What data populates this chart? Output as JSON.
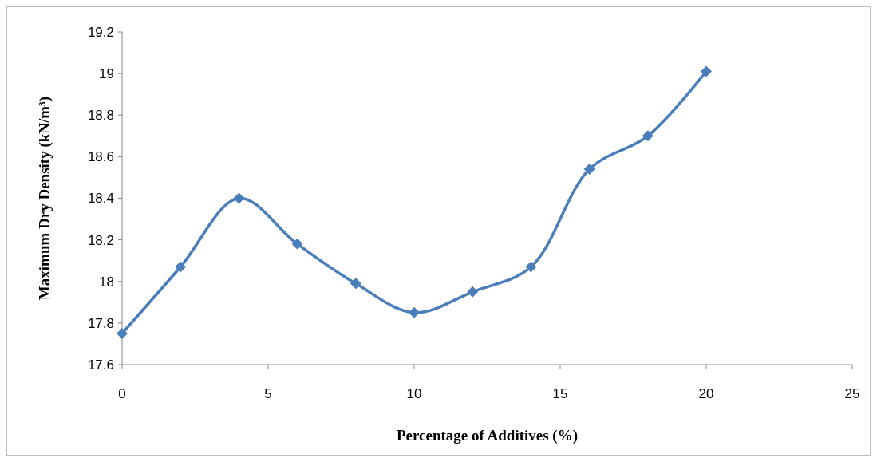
{
  "chart_data": {
    "type": "line",
    "xlabel": "Percentage of Additives (%)",
    "ylabel": "Maximum Dry Density (kN/m³)",
    "x": [
      0,
      2,
      4,
      6,
      8,
      10,
      12,
      14,
      16,
      18,
      20
    ],
    "series": [
      {
        "color": "#4a7ebb",
        "values": [
          17.75,
          18.07,
          18.4,
          18.18,
          17.99,
          17.85,
          17.95,
          18.07,
          18.54,
          18.7,
          19.01
        ]
      }
    ],
    "xlim": [
      0,
      25
    ],
    "xticks": [
      0,
      5,
      10,
      15,
      20,
      25
    ],
    "ylim": [
      17.6,
      19.2
    ],
    "yticks": [
      17.6,
      17.8,
      18,
      18.2,
      18.4,
      18.6,
      18.8,
      19,
      19.2
    ],
    "grid": false,
    "marker": "diamond",
    "line_style": "solid"
  }
}
